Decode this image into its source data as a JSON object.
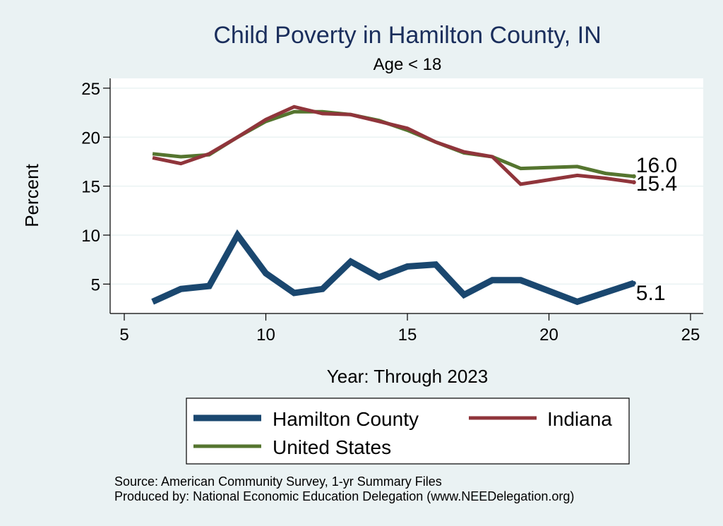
{
  "chart_data": {
    "type": "line",
    "title": "Child Poverty in Hamilton County, IN",
    "subtitle": "Age < 18",
    "xlabel": "Year: Through 2023",
    "ylabel": "Percent",
    "xlim": [
      5,
      25
    ],
    "ylim": [
      2,
      26
    ],
    "xticks": [
      5,
      10,
      15,
      20,
      25
    ],
    "yticks": [
      5,
      10,
      15,
      20,
      25
    ],
    "grid": "horizontal",
    "series": [
      {
        "name": "Hamilton County",
        "color": "#1a476f",
        "width": 9,
        "x": [
          6,
          7,
          8,
          9,
          10,
          11,
          12,
          13,
          14,
          15,
          16,
          17,
          18,
          19,
          21,
          23
        ],
        "values": [
          3.2,
          4.5,
          4.8,
          10.0,
          6.1,
          4.1,
          4.5,
          7.3,
          5.7,
          6.8,
          7.0,
          3.9,
          5.4,
          5.4,
          3.2,
          5.1
        ],
        "end_label": "5.1"
      },
      {
        "name": "Indiana",
        "color": "#90353b",
        "width": 5,
        "x": [
          6,
          7,
          8,
          9,
          10,
          11,
          12,
          13,
          14,
          15,
          16,
          17,
          18,
          19,
          21,
          22,
          23
        ],
        "values": [
          17.9,
          17.3,
          18.3,
          20.0,
          21.8,
          23.1,
          22.4,
          22.3,
          21.6,
          20.9,
          19.5,
          18.5,
          18.0,
          15.2,
          16.1,
          15.8,
          15.4
        ],
        "end_label": "15.4"
      },
      {
        "name": "United States",
        "color": "#55752f",
        "width": 5,
        "x": [
          6,
          7,
          8,
          9,
          10,
          11,
          12,
          13,
          14,
          15,
          16,
          17,
          18,
          19,
          21,
          22,
          23
        ],
        "values": [
          18.3,
          18.0,
          18.2,
          20.0,
          21.6,
          22.6,
          22.6,
          22.3,
          21.7,
          20.7,
          19.5,
          18.4,
          18.0,
          16.8,
          17.0,
          16.3,
          16.0
        ],
        "end_label": "16.0"
      }
    ],
    "legend": {
      "position": "bottom",
      "entries": [
        "Hamilton County",
        "Indiana",
        "United States"
      ]
    },
    "notes": [
      "Source: American Community Survey, 1-yr Summary Files",
      "Produced by: National Economic Education Delegation (www.NEEDelegation.org)"
    ]
  }
}
